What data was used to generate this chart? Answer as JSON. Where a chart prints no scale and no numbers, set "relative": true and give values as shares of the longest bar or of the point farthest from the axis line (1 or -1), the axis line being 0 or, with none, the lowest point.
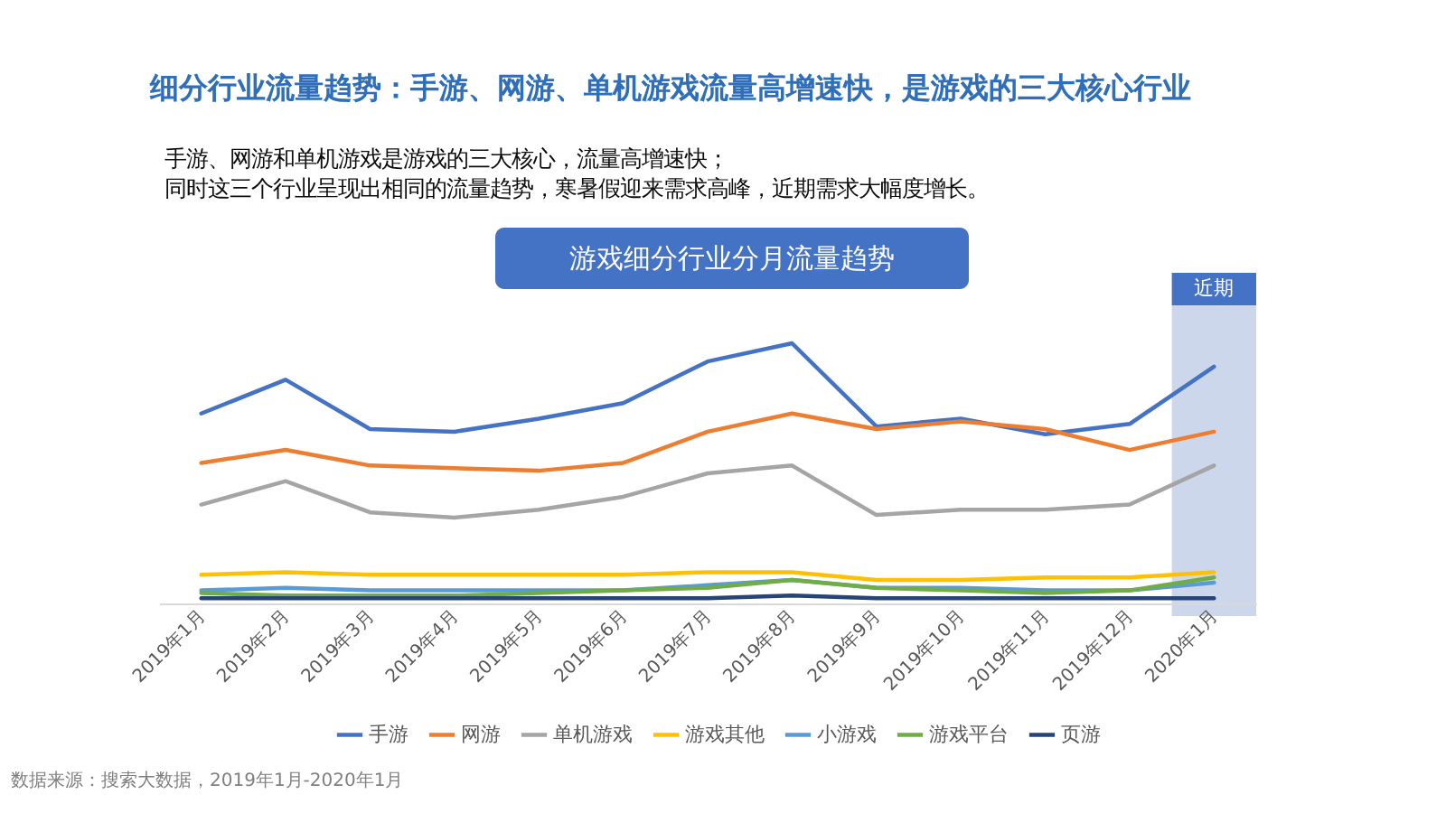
{
  "chart_data": {
    "type": "line",
    "title": "细分行业流量趋势：手游、网游、单机游戏流量高增速快，是游戏的三大核心行业",
    "subtitle": [
      "手游、网游和单机游戏是游戏的三大核心，流量高增速快；",
      "同时这三个行业呈现出相同的流量趋势，寒暑假迎来需求高峰，近期需求大幅度增长。"
    ],
    "annotations": [
      "游戏细分行业分月流量趋势",
      "数据来源：搜索大数据，2019年1月-2020年1月"
    ],
    "categories": [
      "2019年1月",
      "2019年2月",
      "2019年3月",
      "2019年4月",
      "2019年5月",
      "2019年6月",
      "2019年7月",
      "2019年8月",
      "2019年9月",
      "2019年10月",
      "2019年11月",
      "2019年12月",
      "2020年1月"
    ],
    "relative": true,
    "series": [
      {
        "name": "手游",
        "color": "#4472c4",
        "values": [
          0.73,
          0.86,
          0.67,
          0.66,
          0.71,
          0.77,
          0.93,
          1.0,
          0.68,
          0.71,
          0.65,
          0.69,
          0.91
        ]
      },
      {
        "name": "网游",
        "color": "#ed7d31",
        "values": [
          0.54,
          0.59,
          0.53,
          0.52,
          0.51,
          0.54,
          0.66,
          0.73,
          0.67,
          0.7,
          0.67,
          0.59,
          0.66
        ]
      },
      {
        "name": "单机游戏",
        "color": "#a5a5a5",
        "values": [
          0.38,
          0.47,
          0.35,
          0.33,
          0.36,
          0.41,
          0.5,
          0.53,
          0.34,
          0.36,
          0.36,
          0.38,
          0.53
        ]
      },
      {
        "name": "游戏其他",
        "color": "#ffc000",
        "values": [
          0.11,
          0.12,
          0.11,
          0.11,
          0.11,
          0.11,
          0.12,
          0.12,
          0.09,
          0.09,
          0.1,
          0.1,
          0.12
        ]
      },
      {
        "name": "小游戏",
        "color": "#5b9bd5",
        "values": [
          0.05,
          0.06,
          0.05,
          0.05,
          0.05,
          0.05,
          0.07,
          0.09,
          0.06,
          0.06,
          0.05,
          0.05,
          0.08
        ]
      },
      {
        "name": "游戏平台",
        "color": "#70ad47",
        "values": [
          0.04,
          0.03,
          0.03,
          0.03,
          0.04,
          0.05,
          0.06,
          0.09,
          0.06,
          0.05,
          0.04,
          0.05,
          0.1
        ]
      },
      {
        "name": "页游",
        "color": "#264478",
        "values": [
          0.02,
          0.02,
          0.02,
          0.02,
          0.02,
          0.02,
          0.02,
          0.03,
          0.02,
          0.02,
          0.02,
          0.02,
          0.02
        ]
      }
    ],
    "bands": [
      {
        "axis": "x",
        "from": "2020年1月",
        "to": "2020年1月",
        "label": "近期",
        "color": "#cdd7eb"
      }
    ],
    "legend": "bottom"
  }
}
